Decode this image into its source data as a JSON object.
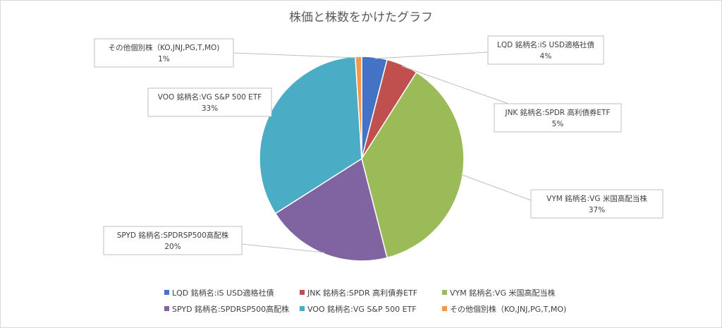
{
  "chart_data": {
    "type": "pie",
    "title": "株価と株数をかけたグラフ",
    "unit": "%",
    "slices": [
      {
        "name": "LQD 銘柄名:iS USD適格社債",
        "value": 4,
        "label": "4%",
        "color": "#4472c4"
      },
      {
        "name": "JNK 銘柄名:SPDR 高利債券ETF",
        "value": 5,
        "label": "5%",
        "color": "#c0504d"
      },
      {
        "name": "VYM 銘柄名:VG 米国高配当株",
        "value": 37,
        "label": "37%",
        "color": "#9bbb59"
      },
      {
        "name": "SPYD 銘柄名:SPDRSP500高配株",
        "value": 20,
        "label": "20%",
        "color": "#8064a2"
      },
      {
        "name": "VOO 銘柄名:VG S&P 500 ETF",
        "value": 33,
        "label": "33%",
        "color": "#4bacc6"
      },
      {
        "name": "その他個別株（KO,JNJ,PG,T,MO)",
        "value": 1,
        "label": "1%",
        "color": "#f79646"
      }
    ],
    "legend_position": "bottom",
    "data_labels": "callouts with category name and percentage"
  }
}
